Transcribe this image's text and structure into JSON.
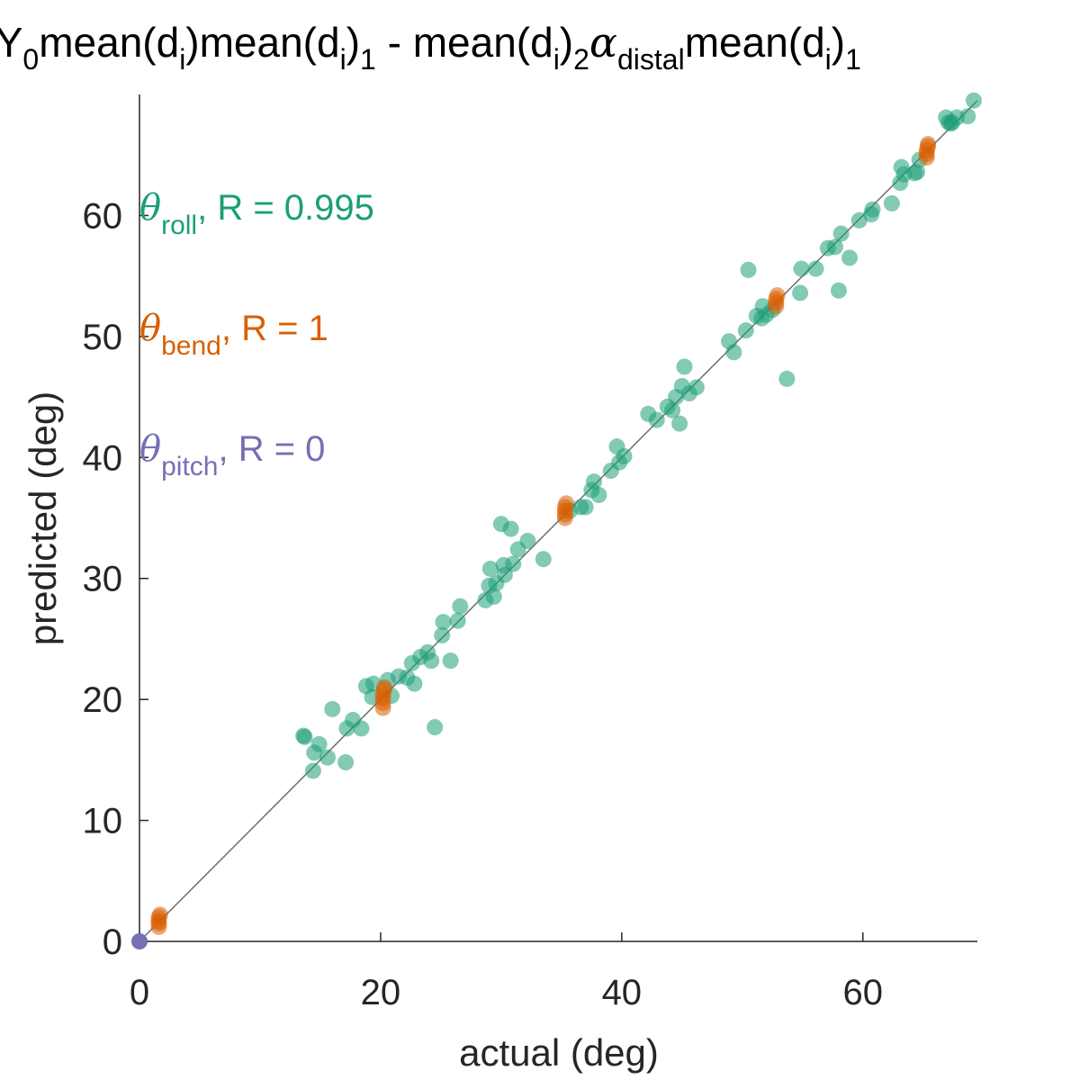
{
  "chart_data": {
    "type": "scatter",
    "title": {
      "prefix": ": Y",
      "sub0": "0",
      "p1": "mean(d",
      "sub_i1": "i",
      "p2": ")mean(d",
      "sub_i2": "i",
      "p3": ")",
      "sub1": "1",
      "p4": " - mean(d",
      "sub_i3": "i",
      "p5": ")",
      "sub2": "2",
      "alpha": "α",
      "sub_distal": "distal",
      "p6": "mean(d",
      "sub_i4": "i",
      "p7": ")",
      "sub_end": "1"
    },
    "xlabel": "actual (deg)",
    "ylabel": "predicted (deg)",
    "xlim": [
      0,
      69.5
    ],
    "ylim": [
      0,
      70
    ],
    "xticks": [
      0,
      20,
      40,
      60
    ],
    "yticks": [
      0,
      10,
      20,
      30,
      40,
      50,
      60
    ],
    "grid": false,
    "identity_line": true,
    "series": [
      {
        "symbol": "θ",
        "sub": "roll",
        "suffix": ", R = 0.995",
        "color": "#1b9e77",
        "points": [
          [
            13.6,
            17.0
          ],
          [
            13.7,
            16.9
          ],
          [
            14.4,
            14.1
          ],
          [
            14.5,
            15.6
          ],
          [
            14.9,
            16.3
          ],
          [
            15.6,
            15.2
          ],
          [
            16.0,
            19.2
          ],
          [
            17.1,
            14.8
          ],
          [
            17.2,
            17.6
          ],
          [
            17.7,
            18.3
          ],
          [
            18.4,
            17.6
          ],
          [
            18.8,
            21.1
          ],
          [
            19.3,
            20.2
          ],
          [
            19.4,
            21.3
          ],
          [
            20.6,
            21.6
          ],
          [
            20.9,
            20.3
          ],
          [
            21.5,
            21.9
          ],
          [
            22.2,
            21.8
          ],
          [
            22.6,
            23.0
          ],
          [
            22.8,
            21.3
          ],
          [
            23.3,
            23.5
          ],
          [
            23.9,
            23.9
          ],
          [
            24.2,
            23.2
          ],
          [
            24.5,
            17.7
          ],
          [
            25.1,
            25.3
          ],
          [
            25.2,
            26.4
          ],
          [
            25.8,
            23.2
          ],
          [
            26.4,
            26.5
          ],
          [
            26.6,
            27.7
          ],
          [
            28.7,
            28.2
          ],
          [
            29.0,
            29.4
          ],
          [
            29.1,
            30.8
          ],
          [
            29.4,
            28.5
          ],
          [
            29.6,
            29.6
          ],
          [
            30.0,
            34.5
          ],
          [
            30.2,
            31.1
          ],
          [
            30.3,
            30.3
          ],
          [
            30.8,
            34.1
          ],
          [
            31.0,
            31.2
          ],
          [
            31.4,
            32.4
          ],
          [
            32.2,
            33.1
          ],
          [
            33.5,
            31.6
          ],
          [
            35.7,
            35.6
          ],
          [
            36.6,
            35.9
          ],
          [
            37.0,
            35.9
          ],
          [
            37.5,
            37.3
          ],
          [
            37.7,
            38.0
          ],
          [
            38.1,
            36.9
          ],
          [
            39.1,
            38.9
          ],
          [
            39.6,
            40.9
          ],
          [
            39.8,
            39.6
          ],
          [
            40.2,
            40.1
          ],
          [
            42.2,
            43.6
          ],
          [
            42.9,
            43.1
          ],
          [
            43.8,
            44.2
          ],
          [
            44.2,
            43.9
          ],
          [
            44.5,
            45.0
          ],
          [
            44.8,
            42.8
          ],
          [
            45.0,
            45.9
          ],
          [
            45.2,
            47.5
          ],
          [
            45.6,
            45.3
          ],
          [
            46.2,
            45.8
          ],
          [
            48.9,
            49.6
          ],
          [
            49.3,
            48.7
          ],
          [
            50.3,
            50.5
          ],
          [
            50.5,
            55.5
          ],
          [
            51.2,
            51.7
          ],
          [
            51.6,
            51.5
          ],
          [
            51.7,
            52.5
          ],
          [
            52.0,
            51.8
          ],
          [
            52.5,
            52.2
          ],
          [
            53.7,
            46.5
          ],
          [
            54.8,
            53.6
          ],
          [
            54.9,
            55.6
          ],
          [
            56.1,
            55.6
          ],
          [
            57.1,
            57.3
          ],
          [
            57.7,
            57.4
          ],
          [
            58.0,
            53.8
          ],
          [
            58.2,
            58.5
          ],
          [
            58.9,
            56.5
          ],
          [
            59.7,
            59.6
          ],
          [
            60.7,
            60.1
          ],
          [
            60.8,
            60.5
          ],
          [
            62.4,
            61.0
          ],
          [
            63.1,
            62.7
          ],
          [
            63.2,
            64.0
          ],
          [
            63.4,
            63.4
          ],
          [
            64.3,
            63.5
          ],
          [
            64.5,
            63.6
          ],
          [
            64.7,
            64.6
          ],
          [
            66.9,
            68.1
          ],
          [
            67.1,
            67.7
          ],
          [
            67.3,
            67.6
          ],
          [
            67.4,
            67.7
          ],
          [
            67.8,
            68.1
          ],
          [
            68.7,
            68.2
          ],
          [
            69.2,
            69.5
          ]
        ]
      },
      {
        "symbol": "θ",
        "sub": "bend",
        "suffix": ", R = 1",
        "color": "#d95f02",
        "points": [
          [
            1.6,
            1.2
          ],
          [
            1.6,
            1.5
          ],
          [
            1.6,
            1.7
          ],
          [
            1.6,
            2.0
          ],
          [
            1.7,
            2.2
          ],
          [
            20.2,
            19.3
          ],
          [
            20.2,
            19.7
          ],
          [
            20.2,
            20.1
          ],
          [
            20.2,
            20.4
          ],
          [
            20.3,
            20.8
          ],
          [
            20.3,
            21.0
          ],
          [
            35.3,
            35.0
          ],
          [
            35.3,
            35.3
          ],
          [
            35.3,
            35.6
          ],
          [
            35.3,
            35.9
          ],
          [
            35.4,
            36.2
          ],
          [
            52.8,
            52.5
          ],
          [
            52.8,
            52.8
          ],
          [
            52.8,
            53.1
          ],
          [
            52.9,
            53.4
          ],
          [
            65.3,
            64.8
          ],
          [
            65.3,
            65.1
          ],
          [
            65.3,
            65.4
          ],
          [
            65.4,
            65.7
          ],
          [
            65.4,
            65.9
          ]
        ]
      },
      {
        "symbol": "θ",
        "sub": "pitch",
        "suffix": ", R = 0",
        "color": "#7570b3",
        "points": [
          [
            0,
            0
          ]
        ]
      }
    ]
  }
}
